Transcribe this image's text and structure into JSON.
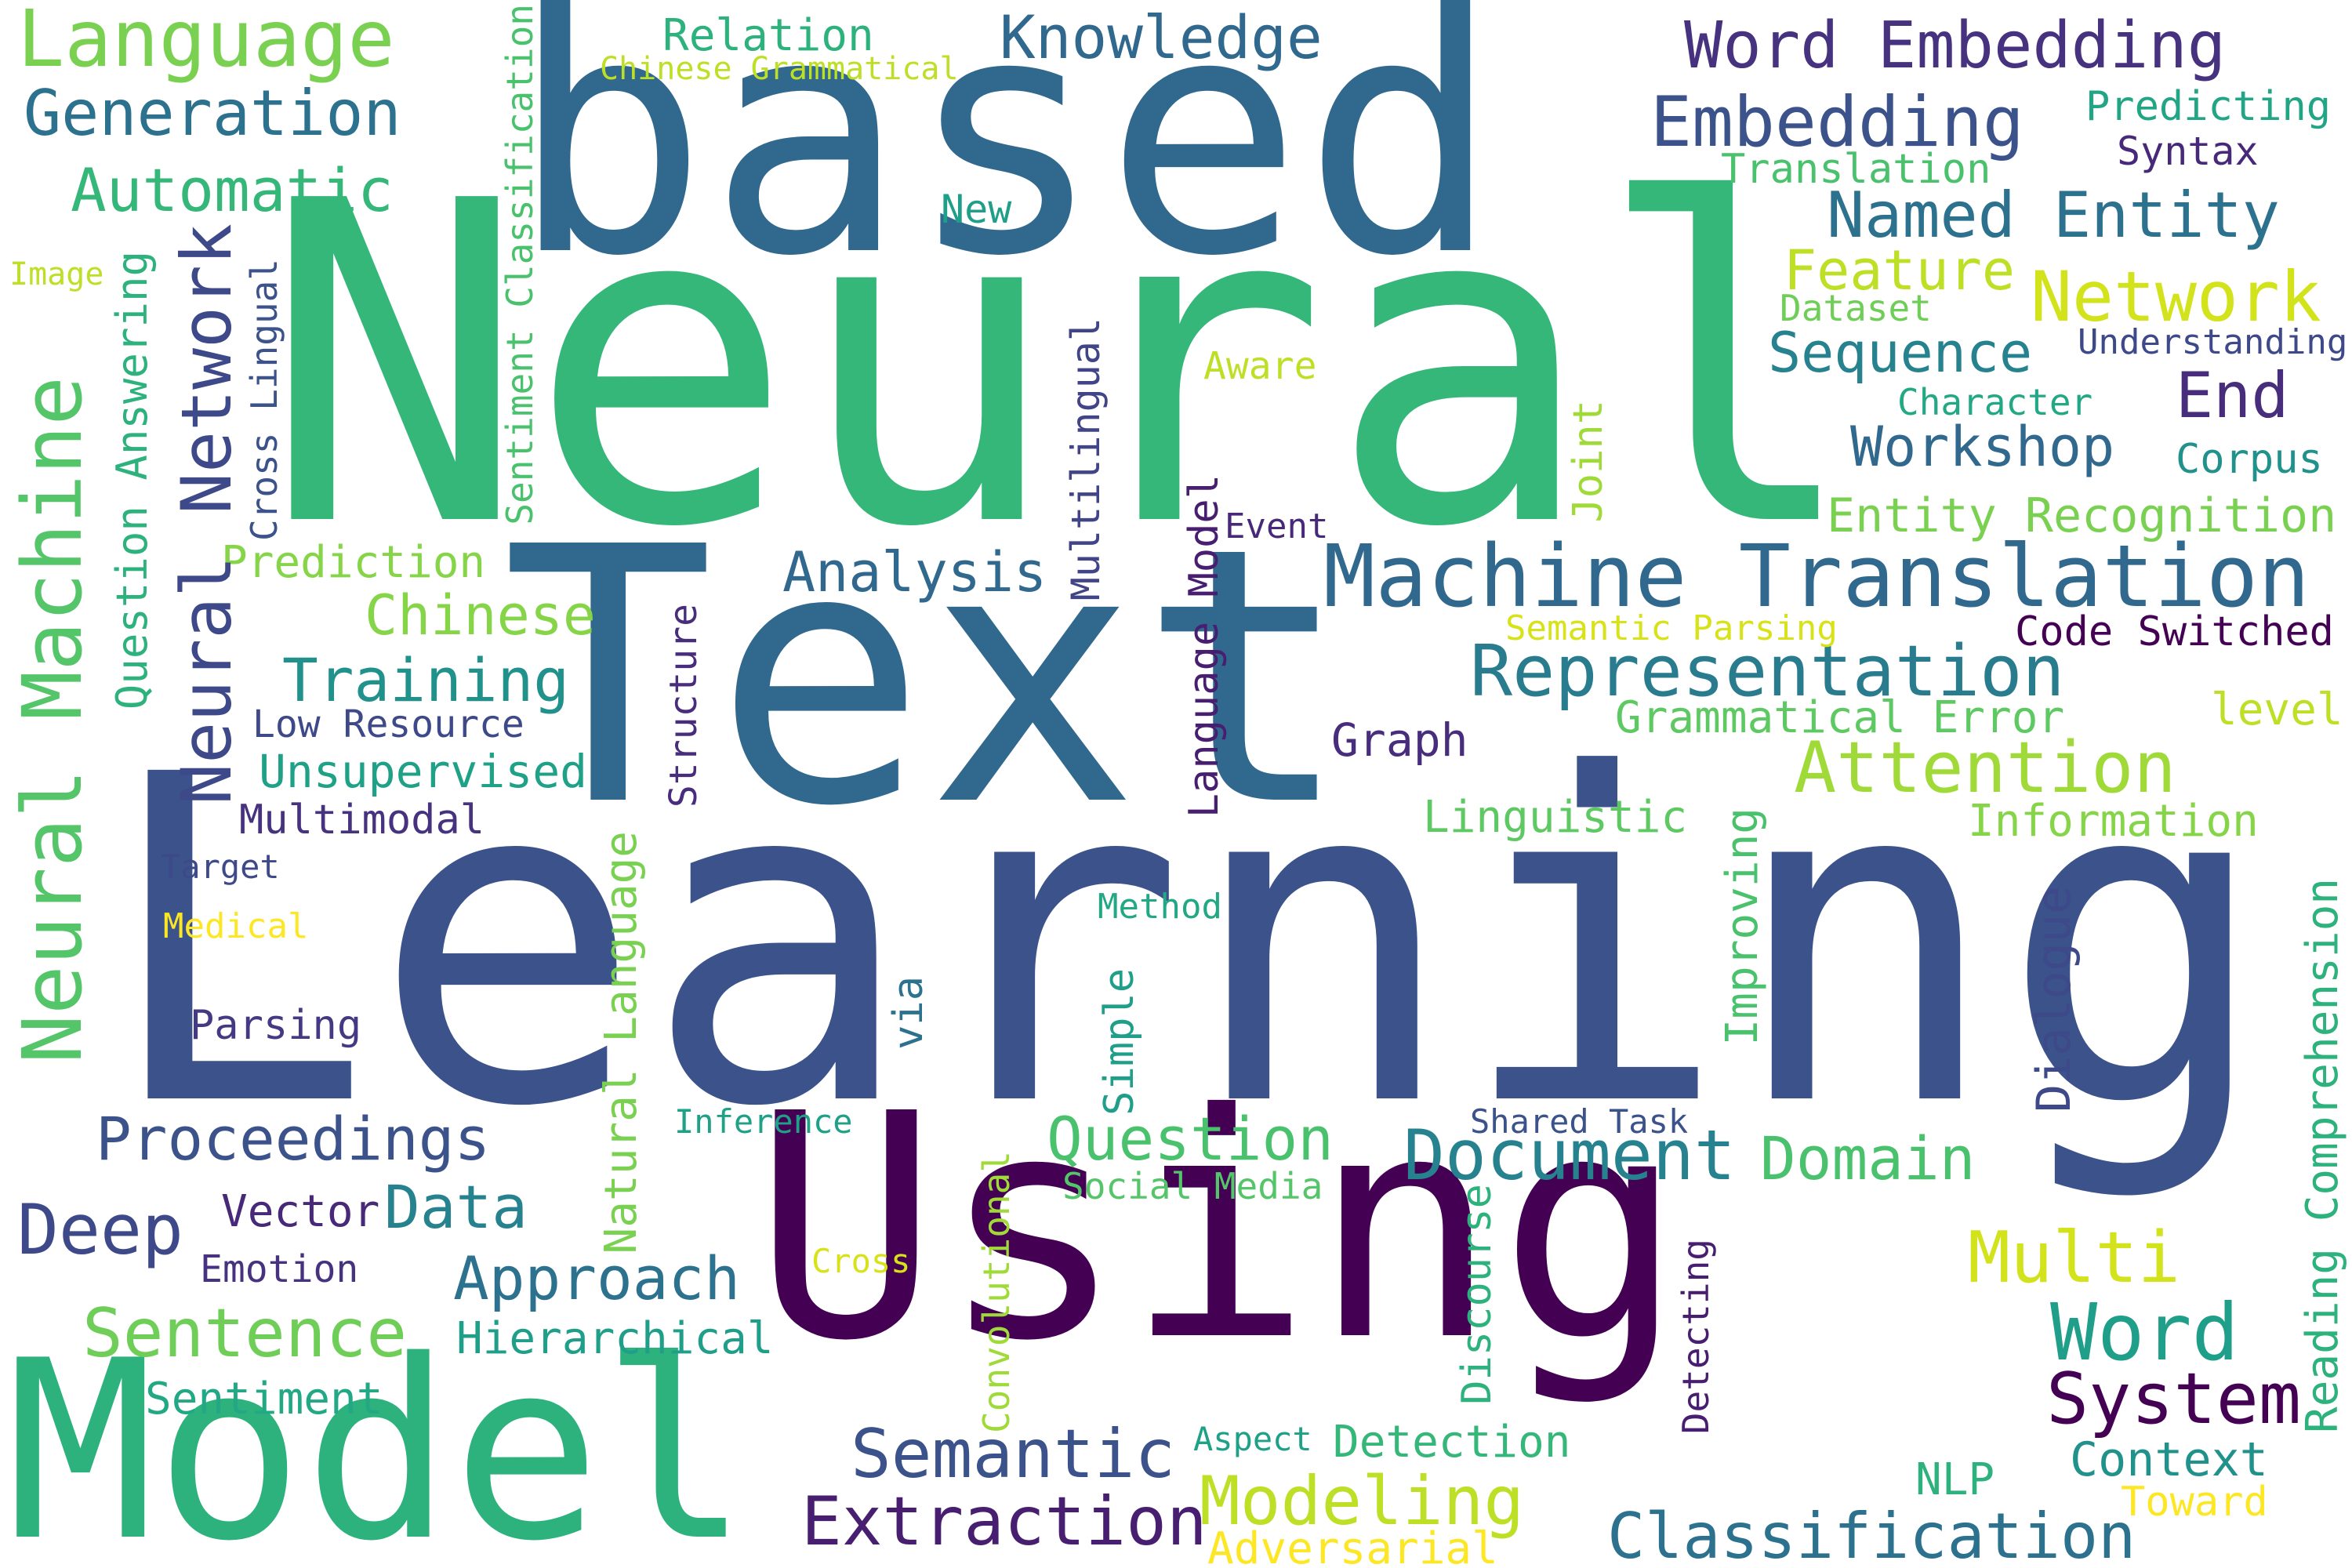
{
  "words": [
    {
      "text": "Learning",
      "color": "#3b528b"
    },
    {
      "text": "Neural",
      "color": "#35b779"
    },
    {
      "text": "Text",
      "color": "#31688e"
    },
    {
      "text": "based",
      "color": "#31688e"
    },
    {
      "text": "Using",
      "color": "#440154"
    },
    {
      "text": "Model",
      "color": "#2db27d"
    },
    {
      "text": "Machine Translation",
      "color": "#31688e"
    },
    {
      "text": "Language",
      "color": "#7ad151"
    },
    {
      "text": "Generation",
      "color": "#2c728e"
    },
    {
      "text": "Automatic",
      "color": "#35b779"
    },
    {
      "text": "Knowledge",
      "color": "#31688e"
    },
    {
      "text": "Relation",
      "color": "#2db27d"
    },
    {
      "text": "Chinese Grammatical",
      "color": "#bddf26"
    },
    {
      "text": "Word Embedding",
      "color": "#46327e"
    },
    {
      "text": "Embedding",
      "color": "#3b528b"
    },
    {
      "text": "Predicting",
      "color": "#21a585"
    },
    {
      "text": "Syntax",
      "color": "#482878"
    },
    {
      "text": "Translation",
      "color": "#4ac16d"
    },
    {
      "text": "Named Entity",
      "color": "#2c728e"
    },
    {
      "text": "Feature",
      "color": "#bddf26"
    },
    {
      "text": "Network",
      "color": "#d2e21b"
    },
    {
      "text": "Dataset",
      "color": "#6ece58"
    },
    {
      "text": "Sequence",
      "color": "#26828e"
    },
    {
      "text": "Understanding",
      "color": "#3e4989"
    },
    {
      "text": "Character",
      "color": "#22a884"
    },
    {
      "text": "End",
      "color": "#472d7b"
    },
    {
      "text": "Workshop",
      "color": "#31688e"
    },
    {
      "text": "Corpus",
      "color": "#21918c"
    },
    {
      "text": "Entity Recognition",
      "color": "#7ad151"
    },
    {
      "text": "Image",
      "color": "#bddf26"
    },
    {
      "text": "New",
      "color": "#1f9e89"
    },
    {
      "text": "Aware",
      "color": "#bddf26"
    },
    {
      "text": "Event",
      "color": "#482878"
    },
    {
      "text": "Analysis",
      "color": "#31688e"
    },
    {
      "text": "Prediction",
      "color": "#86d549"
    },
    {
      "text": "Chinese",
      "color": "#86d549"
    },
    {
      "text": "Training",
      "color": "#21918c"
    },
    {
      "text": "Low Resource",
      "color": "#3e4989"
    },
    {
      "text": "Unsupervised",
      "color": "#1fa188"
    },
    {
      "text": "Multimodal",
      "color": "#46327e"
    },
    {
      "text": "Target",
      "color": "#3e4989"
    },
    {
      "text": "Medical",
      "color": "#fde725"
    },
    {
      "text": "Parsing",
      "color": "#443983"
    },
    {
      "text": "Proceedings",
      "color": "#3b528b"
    },
    {
      "text": "Deep",
      "color": "#3e4989"
    },
    {
      "text": "Vector",
      "color": "#482878"
    },
    {
      "text": "Data",
      "color": "#26828e"
    },
    {
      "text": "Emotion",
      "color": "#46327e"
    },
    {
      "text": "Sentence",
      "color": "#6ece58"
    },
    {
      "text": "Approach",
      "color": "#2c728e"
    },
    {
      "text": "Hierarchical",
      "color": "#1f9e89"
    },
    {
      "text": "Sentiment",
      "color": "#22a884"
    },
    {
      "text": "Representation",
      "color": "#287c8e"
    },
    {
      "text": "Semantic Parsing",
      "color": "#d8e219"
    },
    {
      "text": "Code Switched",
      "color": "#440154"
    },
    {
      "text": "Grammatical Error",
      "color": "#5ec962"
    },
    {
      "text": "level",
      "color": "#bddf26"
    },
    {
      "text": "Graph",
      "color": "#472d7b"
    },
    {
      "text": "Attention",
      "color": "#a0da39"
    },
    {
      "text": "Linguistic",
      "color": "#5ec962"
    },
    {
      "text": "Information",
      "color": "#86d549"
    },
    {
      "text": "Method",
      "color": "#22a884"
    },
    {
      "text": "Inference",
      "color": "#1fa188"
    },
    {
      "text": "Question",
      "color": "#4ac16d"
    },
    {
      "text": "Document",
      "color": "#26828e"
    },
    {
      "text": "Domain",
      "color": "#4ac16d"
    },
    {
      "text": "Social Media",
      "color": "#54c568"
    },
    {
      "text": "Shared Task",
      "color": "#3b528b"
    },
    {
      "text": "Cross",
      "color": "#d8e219"
    },
    {
      "text": "Multi",
      "color": "#d2e21b"
    },
    {
      "text": "Word",
      "color": "#1f9e89"
    },
    {
      "text": "System",
      "color": "#440154"
    },
    {
      "text": "Semantic",
      "color": "#3b528b"
    },
    {
      "text": "Aspect",
      "color": "#1fa188"
    },
    {
      "text": "Detection",
      "color": "#35b779"
    },
    {
      "text": "Modeling",
      "color": "#bddf26"
    },
    {
      "text": "Extraction",
      "color": "#481f70"
    },
    {
      "text": "Adversarial",
      "color": "#fde725"
    },
    {
      "text": "NLP",
      "color": "#2db27d"
    },
    {
      "text": "Context",
      "color": "#21918c"
    },
    {
      "text": "Toward",
      "color": "#fde725"
    },
    {
      "text": "Classification",
      "color": "#2c728e"
    },
    {
      "text": "Neural Machine",
      "color": "#54c568"
    },
    {
      "text": "Neural Network",
      "color": "#3e4989"
    },
    {
      "text": "Question Answering",
      "color": "#2db27d"
    },
    {
      "text": "Cross Lingual",
      "color": "#3b528b"
    },
    {
      "text": "Sentiment Classification",
      "color": "#4ac16d"
    },
    {
      "text": "Structure",
      "color": "#472d7b"
    },
    {
      "text": "Multilingual",
      "color": "#414487"
    },
    {
      "text": "Language Model",
      "color": "#481f70"
    },
    {
      "text": "Joint",
      "color": "#a0da39"
    },
    {
      "text": "Natural Language",
      "color": "#7ad151"
    },
    {
      "text": "via",
      "color": "#2c728e"
    },
    {
      "text": "Simple",
      "color": "#1f9e89"
    },
    {
      "text": "Convolutional",
      "color": "#a0da39"
    },
    {
      "text": "Discourse",
      "color": "#2db27d"
    },
    {
      "text": "Detecting",
      "color": "#481f70"
    },
    {
      "text": "Improving",
      "color": "#4ac16d"
    },
    {
      "text": "Dialogue",
      "color": "#3e4989"
    },
    {
      "text": "Reading Comprehension",
      "color": "#2db27d"
    }
  ]
}
